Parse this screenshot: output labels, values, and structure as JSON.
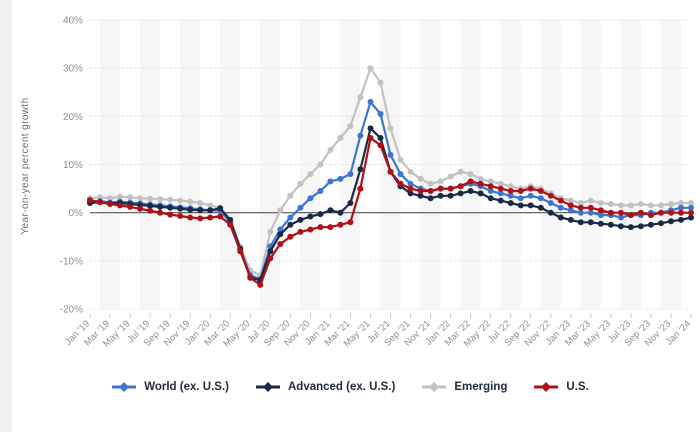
{
  "page": {
    "background_color": "#ffffff",
    "left_strip_color": "#f1f1f1"
  },
  "chart_data": {
    "type": "line",
    "title": "",
    "ylabel": "Year-on-year percent growth",
    "xlabel": "",
    "ylim": [
      -20,
      40
    ],
    "yticks": [
      40,
      30,
      20,
      10,
      0,
      -10,
      -20
    ],
    "ytick_suffix": "%",
    "grid": "horizontal dotted gridlines, solid zero line, alternating vertical shaded bands",
    "legend_position": "bottom",
    "x_tick_labels": [
      "Jan '19",
      "Mar '19",
      "May '19",
      "Jul '19",
      "Sep '19",
      "Nov '19",
      "Jan '20",
      "Mar '20",
      "May '20",
      "Jul '20",
      "Sep '20",
      "Nov '20",
      "Jan '21",
      "Mar '21",
      "May '21",
      "Jul '21",
      "Sep '21",
      "Nov '21",
      "Jan '22",
      "Mar '22",
      "May '22",
      "Jul '22",
      "Sep '22",
      "Nov '22",
      "Jan '23",
      "Mar '23",
      "May '23",
      "Jul '23",
      "Sep '23",
      "Nov '23",
      "Jan '24"
    ],
    "x_frequency": "monthly",
    "series": [
      {
        "name": "World (ex. U.S.)",
        "color": "#3d76cf",
        "z": 1,
        "values": [
          2.2,
          2.4,
          2.1,
          2.3,
          2.1,
          1.9,
          1.7,
          1.5,
          1.3,
          1.1,
          0.9,
          0.7,
          0.5,
          0.4,
          -2.0,
          -8.0,
          -13.0,
          -13.8,
          -7.0,
          -3.5,
          -1.0,
          1.0,
          3.0,
          4.5,
          6.5,
          7.0,
          8.0,
          16.0,
          23.0,
          20.5,
          12.0,
          8.0,
          6.0,
          5.0,
          4.5,
          5.0,
          5.0,
          5.5,
          6.0,
          5.5,
          4.5,
          4.0,
          3.5,
          3.0,
          3.5,
          3.0,
          2.0,
          1.0,
          0.5,
          0.0,
          0.0,
          -0.5,
          -0.5,
          -1.0,
          -0.5,
          -0.5,
          0.0,
          0.0,
          0.5,
          1.0,
          1.0
        ]
      },
      {
        "name": "Advanced (ex. U.S.)",
        "color": "#1b2a44",
        "z": 2,
        "values": [
          2.0,
          2.2,
          1.9,
          2.0,
          1.8,
          1.6,
          1.4,
          1.2,
          1.0,
          0.8,
          0.6,
          0.5,
          0.5,
          0.9,
          -1.5,
          -7.5,
          -13.5,
          -14.0,
          -8.0,
          -4.5,
          -2.5,
          -1.5,
          -0.8,
          -0.3,
          0.5,
          0.0,
          2.0,
          9.0,
          17.5,
          15.5,
          8.5,
          5.5,
          4.0,
          3.5,
          3.0,
          3.5,
          3.5,
          4.0,
          4.5,
          4.0,
          3.0,
          2.5,
          2.0,
          1.5,
          1.5,
          1.0,
          0.0,
          -1.0,
          -1.5,
          -2.0,
          -2.0,
          -2.3,
          -2.5,
          -2.8,
          -3.0,
          -2.8,
          -2.5,
          -2.2,
          -1.8,
          -1.5,
          -1.0
        ]
      },
      {
        "name": "Emerging",
        "color": "#c2c2c2",
        "z": 0,
        "values": [
          3.0,
          3.2,
          3.0,
          3.3,
          3.2,
          3.0,
          2.9,
          2.8,
          2.7,
          2.5,
          2.3,
          2.0,
          1.5,
          1.0,
          -1.5,
          -7.0,
          -12.0,
          -13.0,
          -4.0,
          0.5,
          3.5,
          6.0,
          8.0,
          10.0,
          13.0,
          15.5,
          18.0,
          24.0,
          30.0,
          27.0,
          17.5,
          11.0,
          8.5,
          7.0,
          6.0,
          6.5,
          7.5,
          8.5,
          8.0,
          7.0,
          6.5,
          6.0,
          5.5,
          5.0,
          5.5,
          5.0,
          4.0,
          3.0,
          2.5,
          2.0,
          2.5,
          2.0,
          1.8,
          1.5,
          1.5,
          1.8,
          1.5,
          1.5,
          1.8,
          2.0,
          2.0
        ]
      },
      {
        "name": "U.S.",
        "color": "#ae1117",
        "z": 3,
        "values": [
          2.6,
          2.2,
          1.8,
          1.5,
          1.2,
          0.8,
          0.4,
          0.0,
          -0.4,
          -0.7,
          -1.0,
          -1.2,
          -1.0,
          -0.8,
          -2.5,
          -8.0,
          -13.5,
          -15.0,
          -9.5,
          -6.5,
          -5.0,
          -4.0,
          -3.5,
          -3.0,
          -3.0,
          -2.5,
          -2.0,
          5.0,
          15.5,
          14.0,
          8.5,
          6.0,
          5.0,
          4.5,
          4.5,
          5.0,
          5.0,
          5.5,
          6.5,
          6.0,
          5.5,
          5.0,
          4.5,
          4.5,
          5.0,
          4.5,
          3.5,
          2.5,
          1.5,
          1.0,
          1.0,
          0.5,
          0.0,
          0.0,
          -0.5,
          0.0,
          -0.5,
          0.0,
          0.0,
          0.0,
          0.0
        ]
      }
    ],
    "style": {
      "band_color": "#f6f6f6",
      "gridline_color": "#d9d9d9",
      "zero_line_color": "#555555",
      "tick_color": "#cccccc",
      "tick_label_color": "#8f8f8f",
      "legend_text_color": "#222c3c"
    }
  }
}
